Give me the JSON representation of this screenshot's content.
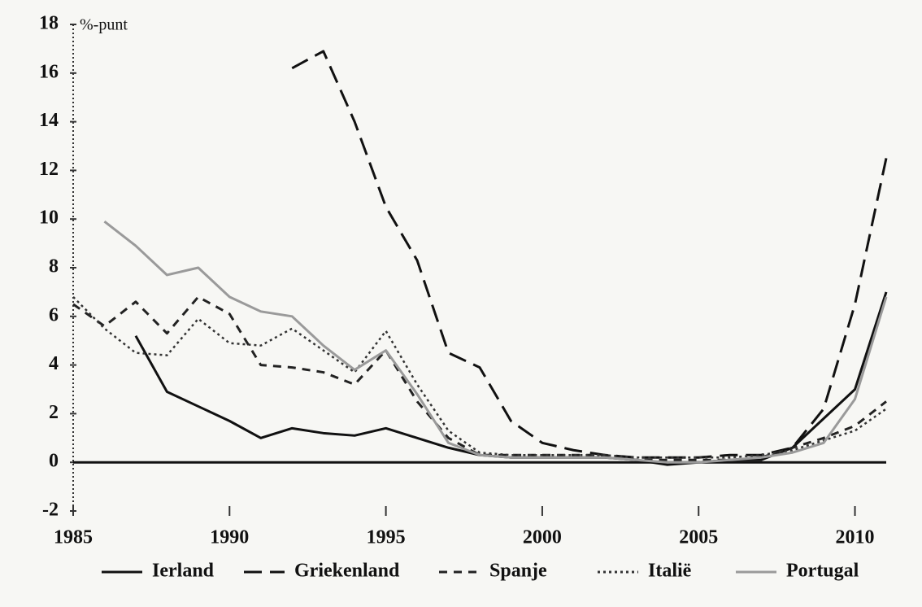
{
  "chart_data": {
    "type": "line",
    "ylabel": "%-punt",
    "x": [
      1985,
      1986,
      1987,
      1988,
      1989,
      1990,
      1991,
      1992,
      1993,
      1994,
      1995,
      1996,
      1997,
      1998,
      1999,
      2000,
      2001,
      2002,
      2003,
      2004,
      2005,
      2006,
      2007,
      2008,
      2009,
      2010,
      2011
    ],
    "xlim": [
      1985,
      2011
    ],
    "xticks": [
      1985,
      1990,
      1995,
      2000,
      2005,
      2010
    ],
    "ylim": [
      -2,
      18
    ],
    "yticks": [
      -2,
      0,
      2,
      4,
      6,
      8,
      10,
      12,
      14,
      16,
      18
    ],
    "legend": "bottom",
    "series": [
      {
        "name": "Ierland",
        "color": "#111111",
        "dash": "solid",
        "values": [
          null,
          null,
          5.2,
          2.9,
          2.3,
          1.7,
          1.0,
          1.4,
          1.2,
          1.1,
          1.4,
          1.0,
          0.6,
          0.3,
          0.2,
          0.2,
          0.2,
          0.2,
          0.1,
          -0.1,
          0.0,
          0.1,
          0.1,
          0.6,
          1.8,
          3.0,
          7.0
        ]
      },
      {
        "name": "Griekenland",
        "color": "#111111",
        "dash": "long",
        "values": [
          null,
          null,
          null,
          null,
          null,
          null,
          null,
          16.2,
          16.9,
          14.0,
          10.5,
          8.3,
          4.5,
          3.9,
          1.7,
          0.8,
          0.5,
          0.3,
          0.2,
          0.2,
          0.2,
          0.3,
          0.3,
          0.6,
          2.2,
          6.5,
          12.5
        ]
      },
      {
        "name": "Spanje",
        "color": "#222222",
        "dash": "short",
        "values": [
          6.5,
          5.6,
          6.6,
          5.3,
          6.8,
          6.1,
          4.0,
          3.9,
          3.7,
          3.2,
          4.6,
          2.5,
          1.0,
          0.3,
          0.3,
          0.3,
          0.3,
          0.3,
          0.1,
          0.1,
          0.1,
          0.1,
          0.2,
          0.6,
          1.0,
          1.5,
          2.5
        ]
      },
      {
        "name": "Italië",
        "color": "#333333",
        "dash": "dotted",
        "values": [
          6.8,
          5.5,
          4.5,
          4.4,
          5.9,
          4.9,
          4.8,
          5.5,
          4.6,
          3.7,
          5.4,
          3.2,
          1.3,
          0.4,
          0.3,
          0.3,
          0.3,
          0.3,
          0.2,
          0.2,
          0.2,
          0.2,
          0.3,
          0.5,
          0.9,
          1.3,
          2.2
        ]
      },
      {
        "name": "Portugal",
        "color": "#9a9a9a",
        "dash": "solid",
        "values": [
          null,
          9.9,
          8.9,
          7.7,
          8.0,
          6.8,
          6.2,
          6.0,
          4.8,
          3.8,
          4.6,
          2.8,
          0.8,
          0.3,
          0.2,
          0.2,
          0.2,
          0.2,
          0.1,
          0.0,
          0.0,
          0.1,
          0.2,
          0.4,
          0.8,
          2.6,
          6.8
        ]
      }
    ]
  }
}
